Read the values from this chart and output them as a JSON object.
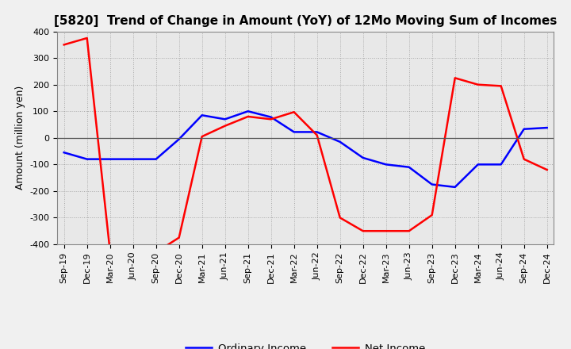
{
  "title": "[5820]  Trend of Change in Amount (YoY) of 12Mo Moving Sum of Incomes",
  "ylabel": "Amount (million yen)",
  "xlabels": [
    "Sep-19",
    "Dec-19",
    "Mar-20",
    "Jun-20",
    "Sep-20",
    "Dec-20",
    "Mar-21",
    "Jun-21",
    "Sep-21",
    "Dec-21",
    "Mar-22",
    "Jun-22",
    "Sep-22",
    "Dec-22",
    "Mar-23",
    "Jun-23",
    "Sep-23",
    "Dec-23",
    "Mar-24",
    "Jun-24",
    "Sep-24",
    "Dec-24"
  ],
  "ordinary_income": [
    -55,
    -80,
    -80,
    -80,
    -80,
    -5,
    85,
    70,
    100,
    78,
    22,
    22,
    -15,
    -75,
    -100,
    -110,
    -175,
    -185,
    -100,
    -100,
    33,
    38
  ],
  "net_income": [
    350,
    375,
    -425,
    -430,
    -430,
    -375,
    5,
    45,
    80,
    70,
    97,
    10,
    -300,
    -350,
    -350,
    -350,
    -290,
    225,
    200,
    195,
    -80,
    -120
  ],
  "ordinary_color": "#0000ff",
  "net_color": "#ff0000",
  "ylim": [
    -400,
    400
  ],
  "yticks": [
    -400,
    -300,
    -200,
    -100,
    0,
    100,
    200,
    300,
    400
  ],
  "background_color": "#f0f0f0",
  "plot_bg_color": "#e8e8e8",
  "grid_color": "#999999",
  "title_fontsize": 11,
  "axis_fontsize": 8,
  "legend_labels": [
    "Ordinary Income",
    "Net Income"
  ],
  "linewidth": 1.8
}
